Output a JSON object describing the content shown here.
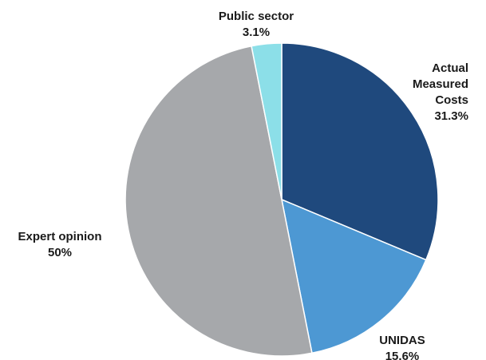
{
  "chart_data": {
    "type": "pie",
    "title": "",
    "start": "12 o'clock, clockwise",
    "slices": [
      {
        "label": [
          "Actual",
          "Measured",
          "Costs"
        ],
        "value": 31.3,
        "value_text": "31.3%",
        "color": "#1F497D"
      },
      {
        "label": [
          "UNIDAS"
        ],
        "value": 15.6,
        "value_text": "15.6%",
        "color": "#4D98D3"
      },
      {
        "label": [
          "Expert opinion"
        ],
        "value": 50,
        "value_text": "50%",
        "color": "#A6A8AB"
      },
      {
        "label": [
          "Public sector"
        ],
        "value": 3.1,
        "value_text": "3.1%",
        "color": "#8CDFE8"
      }
    ]
  }
}
